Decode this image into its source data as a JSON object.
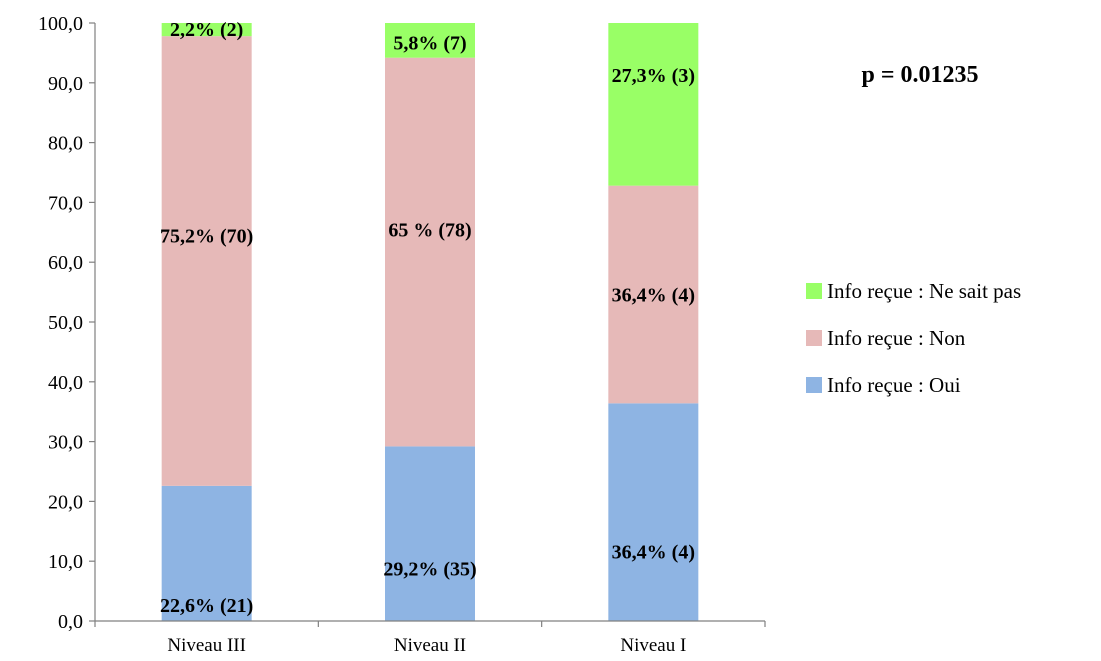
{
  "chart_data": {
    "type": "bar",
    "stacked": true,
    "categories": [
      "Niveau III",
      "Niveau II",
      "Niveau I"
    ],
    "series": [
      {
        "name": "Info reçue : Oui",
        "color": "#8eb4e3",
        "values": [
          22.6,
          29.2,
          36.4
        ],
        "labels": [
          "22,6% (21)",
          "29,2% (35)",
          "36,4% (4)"
        ]
      },
      {
        "name": "Info reçue : Non",
        "color": "#e6b9b8",
        "values": [
          75.2,
          65.0,
          36.4
        ],
        "labels": [
          "75,2% (70)",
          "65 % (78)",
          "36,4% (4)"
        ]
      },
      {
        "name": "Info reçue : Ne sait pas",
        "color": "#99ff66",
        "values": [
          2.2,
          5.8,
          27.3
        ],
        "labels": [
          "2,2% (2)",
          "5,8% (7)",
          "27,3% (3)"
        ]
      }
    ],
    "ylim": [
      0,
      100
    ],
    "yticks": [
      "0,0",
      "10,0",
      "20,0",
      "30,0",
      "40,0",
      "50,0",
      "60,0",
      "70,0",
      "80,0",
      "90,0",
      "100,0"
    ],
    "ytick_values": [
      0,
      10,
      20,
      30,
      40,
      50,
      60,
      70,
      80,
      90,
      100
    ],
    "grid": false,
    "legend_position": "right",
    "legend_order": [
      2,
      1,
      0
    ],
    "annotation": "p = 0.01235"
  }
}
